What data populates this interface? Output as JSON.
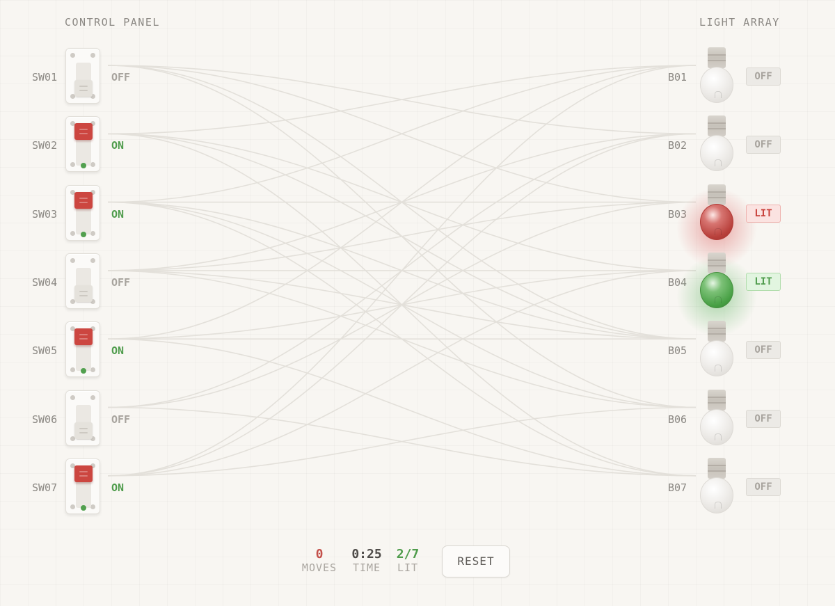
{
  "panel_title": "CONTROL PANEL",
  "array_title": "LIGHT ARRAY",
  "switches": [
    {
      "label": "SW01",
      "state": "OFF"
    },
    {
      "label": "SW02",
      "state": "ON"
    },
    {
      "label": "SW03",
      "state": "ON"
    },
    {
      "label": "SW04",
      "state": "OFF"
    },
    {
      "label": "SW05",
      "state": "ON"
    },
    {
      "label": "SW06",
      "state": "OFF"
    },
    {
      "label": "SW07",
      "state": "ON"
    }
  ],
  "bulbs": [
    {
      "label": "B01",
      "status": "OFF",
      "glow": "none"
    },
    {
      "label": "B02",
      "status": "OFF",
      "glow": "none"
    },
    {
      "label": "B03",
      "status": "LIT",
      "glow": "red"
    },
    {
      "label": "B04",
      "status": "LIT",
      "glow": "green"
    },
    {
      "label": "B05",
      "status": "OFF",
      "glow": "none"
    },
    {
      "label": "B06",
      "status": "OFF",
      "glow": "none"
    },
    {
      "label": "B07",
      "status": "OFF",
      "glow": "none"
    }
  ],
  "stats": {
    "moves": {
      "value": "0",
      "label": "MOVES",
      "color": "#c4514b"
    },
    "time": {
      "value": "0:25",
      "label": "TIME",
      "color": "#4f4c49"
    },
    "lit": {
      "value": "2/7",
      "label": "LIT",
      "color": "#4f9c4c"
    }
  },
  "reset_label": "RESET",
  "colors": {
    "wire": "#e3e0da",
    "switch_on": "#cc4640",
    "bulb_red": "#c8413b",
    "bulb_green": "#4f9c4c"
  },
  "connections": [
    [
      1,
      3
    ],
    [
      1,
      6
    ],
    [
      1,
      2
    ],
    [
      1,
      5
    ],
    [
      2,
      1
    ],
    [
      2,
      4
    ],
    [
      2,
      5
    ],
    [
      2,
      7
    ],
    [
      3,
      3
    ],
    [
      3,
      1
    ],
    [
      3,
      6
    ],
    [
      3,
      5
    ],
    [
      3,
      7
    ],
    [
      4,
      2
    ],
    [
      4,
      3
    ],
    [
      4,
      4
    ],
    [
      4,
      5
    ],
    [
      4,
      6
    ],
    [
      5,
      4
    ],
    [
      5,
      5
    ],
    [
      5,
      1
    ],
    [
      5,
      7
    ],
    [
      6,
      3
    ],
    [
      6,
      2
    ],
    [
      6,
      7
    ],
    [
      7,
      1
    ],
    [
      7,
      2
    ],
    [
      7,
      4
    ],
    [
      7,
      6
    ]
  ]
}
